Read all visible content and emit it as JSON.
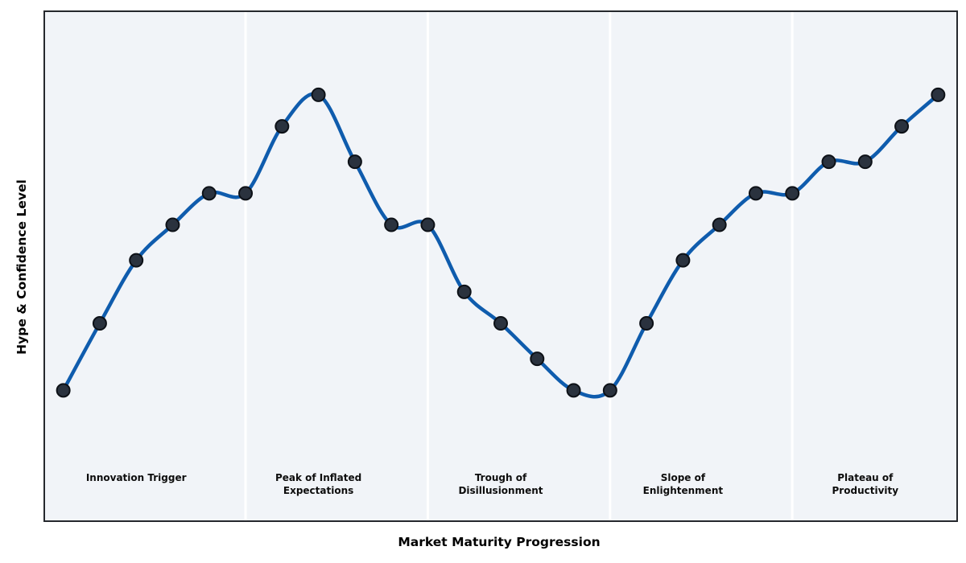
{
  "figure": {
    "background": "#ffffff",
    "plot_background": "#f1f4f8",
    "spine_color": "#25282d",
    "divider_color": "#ffffff"
  },
  "chart_data": {
    "type": "line",
    "title": "",
    "xlabel": "Market Maturity Progression",
    "ylabel": "Hype & Confidence Level",
    "x": [
      0,
      1,
      2,
      3,
      4,
      5,
      6,
      7,
      8,
      9,
      10,
      11,
      12,
      13,
      14,
      15,
      16,
      17,
      18,
      19,
      20,
      21,
      22,
      23,
      24
    ],
    "values": [
      20,
      37,
      53,
      62,
      70,
      70,
      87,
      95,
      78,
      62,
      62,
      45,
      37,
      28,
      20,
      20,
      37,
      53,
      62,
      70,
      70,
      78,
      78,
      87,
      95
    ],
    "xlim": [
      -0.5,
      24.5
    ],
    "ylim": [
      -13,
      116
    ],
    "grid": false,
    "legend": null,
    "smooth": true,
    "line_color": "#0f5cad",
    "line_width": 4.5,
    "marker": {
      "shape": "circle",
      "radius": 8,
      "fill": "#2a323e",
      "edge": "#0d1117",
      "edge_width": 2
    },
    "phase_dividers_x": [
      5,
      10,
      15,
      20
    ],
    "phase_label_top_y": -0.5,
    "phases": [
      {
        "name": "Innovation Trigger",
        "lines": [
          "Innovation Trigger"
        ],
        "center_x": 2
      },
      {
        "name": "Peak of Inflated Expectations",
        "lines": [
          "Peak of Inflated",
          "Expectations"
        ],
        "center_x": 7
      },
      {
        "name": "Trough of Disillusionment",
        "lines": [
          "Trough of",
          "Disillusionment"
        ],
        "center_x": 12
      },
      {
        "name": "Slope of Enlightenment",
        "lines": [
          "Slope of",
          "Enlightenment"
        ],
        "center_x": 17
      },
      {
        "name": "Plateau of Productivity",
        "lines": [
          "Plateau of",
          "Productivity"
        ],
        "center_x": 22
      }
    ]
  }
}
